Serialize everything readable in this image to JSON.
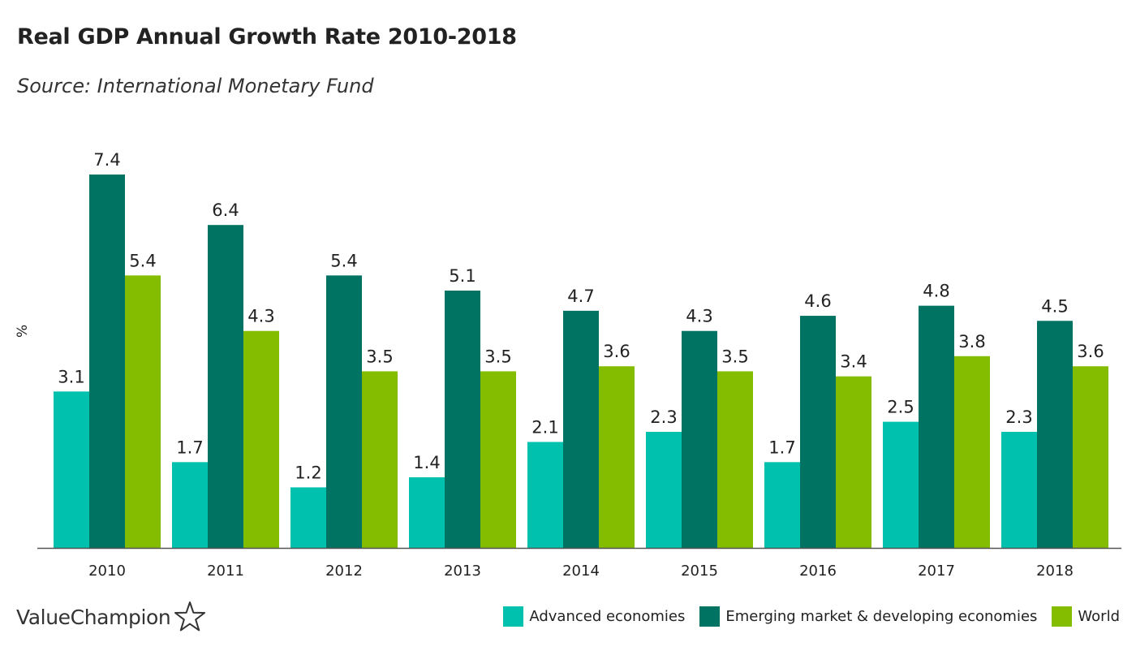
{
  "chart_data": {
    "type": "bar",
    "title": "Real GDP Annual Growth Rate 2010-2018",
    "subtitle": "Source: International Monetary Fund",
    "xlabel": "",
    "ylabel": "%",
    "ylim": [
      0,
      7.4
    ],
    "grid": false,
    "legend_position": "bottom-right",
    "categories": [
      "2010",
      "2011",
      "2012",
      "2013",
      "2014",
      "2015",
      "2016",
      "2017",
      "2018"
    ],
    "series": [
      {
        "name": "Advanced economies",
        "color": "#00c0ae",
        "values": [
          3.1,
          1.7,
          1.2,
          1.4,
          2.1,
          2.3,
          1.7,
          2.5,
          2.3
        ],
        "labels": [
          "3.1",
          "1.7",
          "1.2",
          "1.4",
          "2.1",
          "2.3",
          "1.7",
          "2.5",
          "2.3"
        ]
      },
      {
        "name": "Emerging market & developing economies",
        "color": "#007363",
        "values": [
          7.4,
          6.4,
          5.4,
          5.1,
          4.7,
          4.3,
          4.6,
          4.8,
          4.5
        ],
        "labels": [
          "7.4",
          "6.4",
          "5.4",
          "5.1",
          "4.7",
          "4.3",
          "4.6",
          "4.8",
          "4.5"
        ]
      },
      {
        "name": "World",
        "color": "#84bc00",
        "values": [
          5.4,
          4.3,
          3.5,
          3.5,
          3.6,
          3.5,
          3.4,
          3.8,
          3.6
        ],
        "labels": [
          "5.4",
          "4.3",
          "3.5",
          "3.5",
          "3.6",
          "3.5",
          "3.4",
          "3.8",
          "3.6"
        ]
      }
    ]
  },
  "brand": {
    "name": "ValueChampion",
    "logo_icon": "star-outline-icon"
  }
}
